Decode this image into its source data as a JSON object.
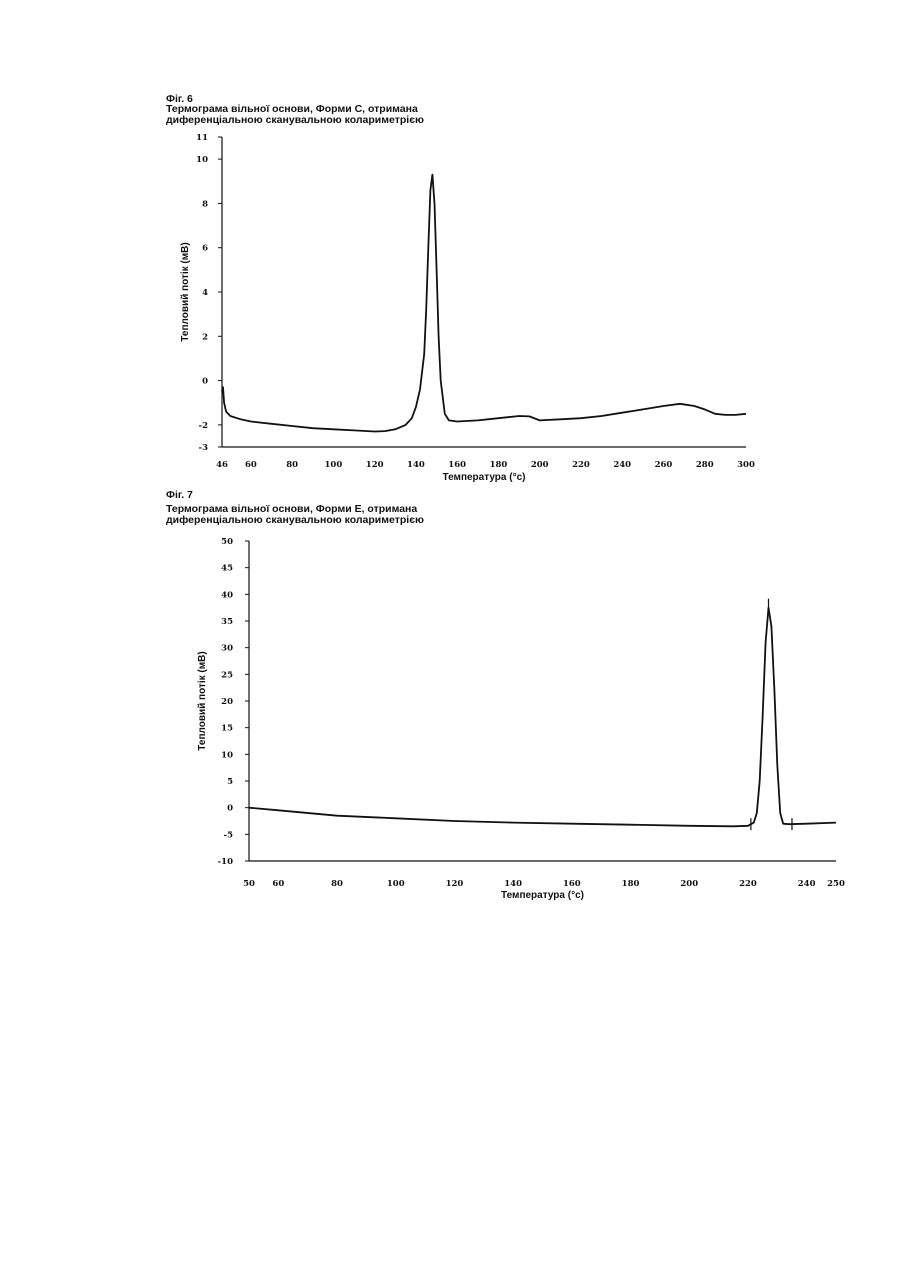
{
  "figures": [
    {
      "label": "Фіг. 6",
      "title_lines": [
        "Термограма вільної основи, Форми С, отримана",
        "диференціальною сканувальною колариметрією"
      ]
    },
    {
      "label": "Фіг. 7",
      "title_lines": [
        "Термограма вільної основи, Форми Е, отримана",
        "диференціальною сканувальною колариметрією"
      ]
    }
  ],
  "chart_data": [
    {
      "type": "line",
      "title": "Термограма вільної основи, Форми С, отримана диференціальною сканувальною колариметрією",
      "xlabel": "Температура (°с)",
      "ylabel": "Тепловий потік (мВ)",
      "xlim": [
        46,
        300
      ],
      "ylim": [
        -3,
        11
      ],
      "x_ticks": [
        46,
        60,
        80,
        100,
        120,
        140,
        160,
        180,
        200,
        220,
        240,
        260,
        280,
        300
      ],
      "y_ticks": [
        -3,
        -2,
        0,
        2,
        4,
        6,
        8,
        10,
        11
      ],
      "grid": false,
      "series": [
        {
          "x": [
            46,
            46.5,
            47,
            48,
            50,
            55,
            60,
            70,
            80,
            90,
            100,
            110,
            120,
            125,
            130,
            135,
            138,
            140,
            142,
            144,
            145,
            146,
            147,
            148,
            149,
            150,
            151,
            152,
            154,
            156,
            160,
            170,
            180,
            190,
            195,
            200,
            210,
            220,
            230,
            240,
            250,
            260,
            268,
            275,
            280,
            285,
            290,
            295,
            300
          ],
          "y": [
            -0.5,
            -0.3,
            -1.0,
            -1.4,
            -1.6,
            -1.75,
            -1.85,
            -1.95,
            -2.05,
            -2.15,
            -2.2,
            -2.25,
            -2.3,
            -2.28,
            -2.2,
            -2.0,
            -1.7,
            -1.2,
            -0.4,
            1.2,
            3.2,
            6.0,
            8.6,
            9.3,
            8.0,
            5.0,
            2.0,
            0.0,
            -1.5,
            -1.8,
            -1.85,
            -1.8,
            -1.7,
            -1.6,
            -1.62,
            -1.8,
            -1.75,
            -1.7,
            -1.6,
            -1.45,
            -1.3,
            -1.15,
            -1.05,
            -1.15,
            -1.3,
            -1.5,
            -1.55,
            -1.55,
            -1.5
          ]
        }
      ]
    },
    {
      "type": "line",
      "title": "Термограма вільної основи, Форми Е, отримана диференціальною сканувальною колариметрією",
      "xlabel": "Температура (°с)",
      "ylabel": "Тепловий потік (мВ)",
      "xlim": [
        50,
        250
      ],
      "ylim": [
        -10,
        50
      ],
      "x_ticks": [
        50,
        60,
        80,
        100,
        120,
        140,
        160,
        180,
        200,
        220,
        240,
        250
      ],
      "y_ticks": [
        -10,
        -5,
        0,
        5,
        10,
        15,
        20,
        25,
        30,
        35,
        40,
        45,
        50
      ],
      "grid": false,
      "series": [
        {
          "x": [
            50,
            60,
            80,
            100,
            120,
            140,
            160,
            180,
            200,
            215,
            220,
            222,
            223,
            224,
            225,
            226,
            227,
            228,
            229,
            230,
            231,
            232,
            234,
            240,
            250
          ],
          "y": [
            0,
            -0.5,
            -1.5,
            -2.0,
            -2.5,
            -2.8,
            -3.0,
            -3.2,
            -3.4,
            -3.5,
            -3.4,
            -2.8,
            -1.0,
            5.0,
            17.0,
            31.0,
            37.5,
            34.0,
            22.0,
            8.0,
            -1.0,
            -3.0,
            -3.1,
            -3.0,
            -2.8
          ]
        }
      ],
      "annotations": {
        "baseline_markers_x": [
          221,
          227,
          235
        ],
        "peak_marker_x": 227
      }
    }
  ]
}
